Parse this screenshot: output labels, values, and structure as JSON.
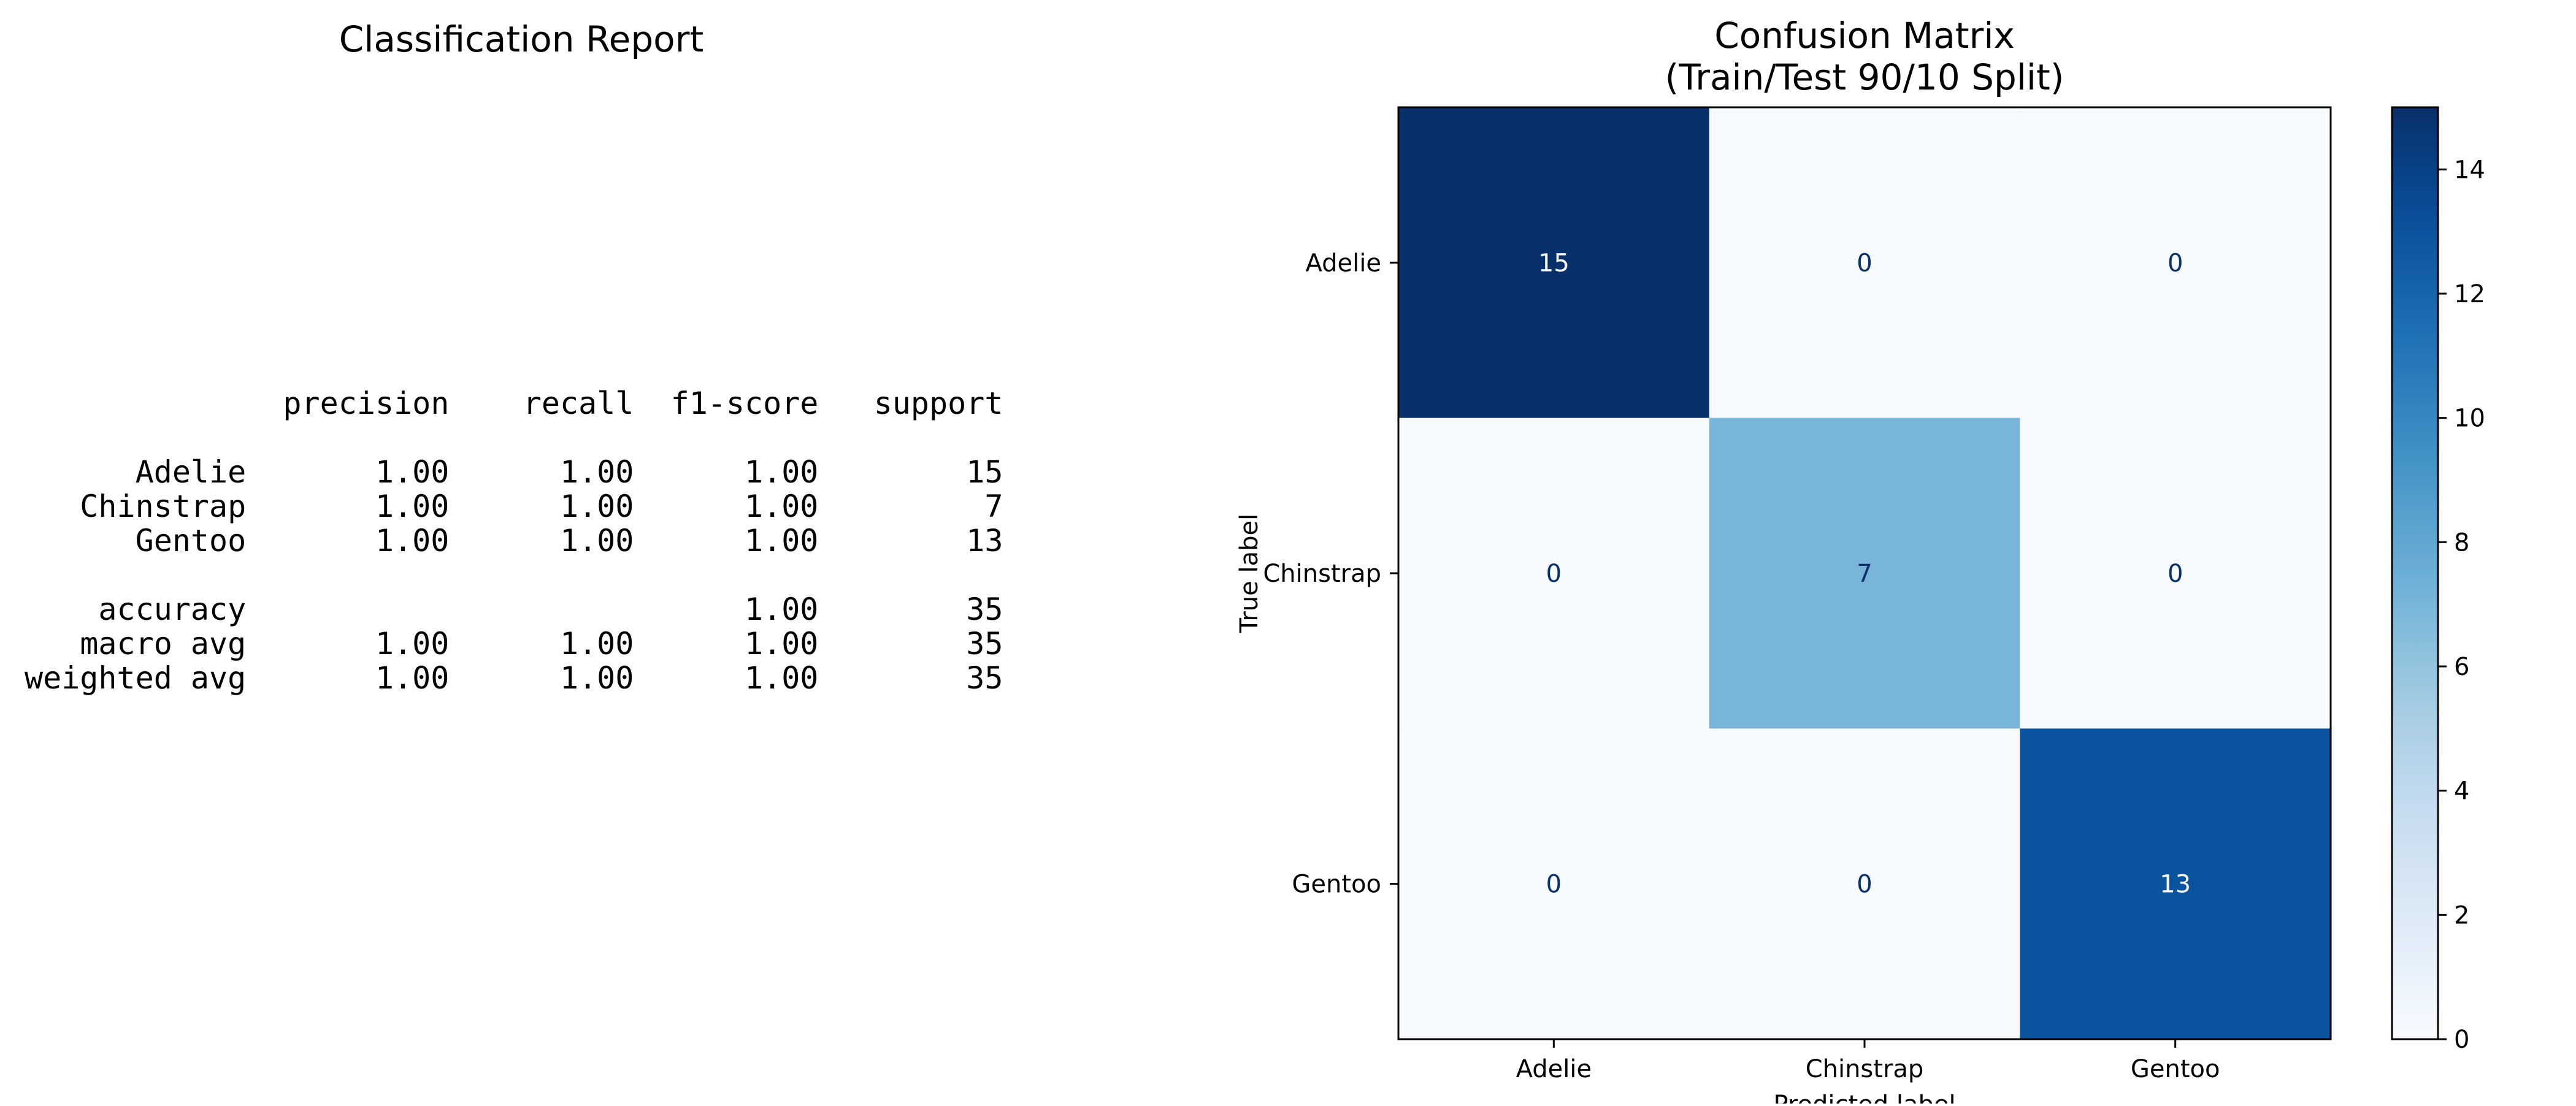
{
  "report": {
    "title": "Classification Report",
    "text": "              precision    recall  f1-score   support\n\n      Adelie       1.00      1.00      1.00        15\n   Chinstrap       1.00      1.00      1.00         7\n      Gentoo       1.00      1.00      1.00        13\n\n    accuracy                           1.00        35\n   macro avg       1.00      1.00      1.00        35\nweighted avg       1.00      1.00      1.00        35"
  },
  "chart_data": {
    "type": "heatmap",
    "title": "Confusion Matrix\n(Train/Test 90/10 Split)",
    "xlabel": "Predicted label",
    "ylabel": "True label",
    "x_categories": [
      "Adelie",
      "Chinstrap",
      "Gentoo"
    ],
    "y_categories": [
      "Adelie",
      "Chinstrap",
      "Gentoo"
    ],
    "values": [
      [
        15,
        0,
        0
      ],
      [
        0,
        7,
        0
      ],
      [
        0,
        0,
        13
      ]
    ],
    "colorscale": "Blues",
    "vmin": 0,
    "vmax": 15,
    "colorbar_ticks": [
      0,
      2,
      4,
      6,
      8,
      10,
      12,
      14
    ],
    "grid": false
  }
}
